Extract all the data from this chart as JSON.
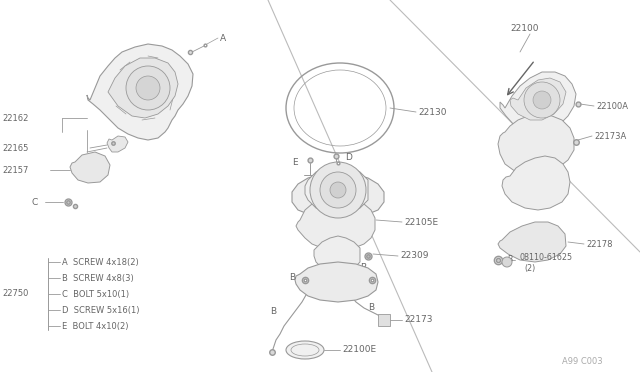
{
  "bg_color": "#ffffff",
  "line_color": "#999999",
  "text_color": "#666666",
  "fig_code": "A99 C003",
  "legend_items": [
    "A  SCREW 4x18(2)",
    "B  SCREW 4x8(3)",
    "C  BOLT 5x10(1)",
    "D  SCREW 5x16(1)",
    "E  BOLT 4x10(2)"
  ],
  "fig_w": 6.4,
  "fig_h": 3.72,
  "dpi": 100
}
